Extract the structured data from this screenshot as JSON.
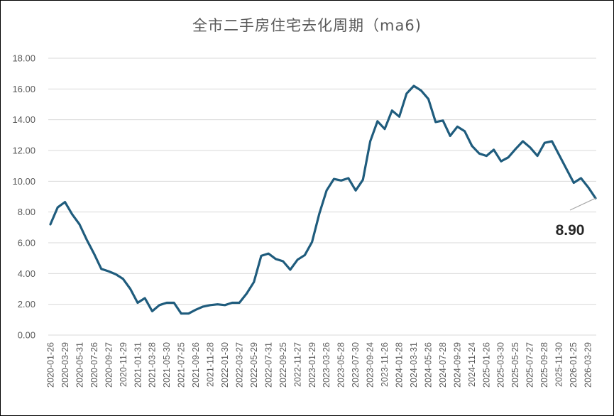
{
  "chart_data": {
    "type": "line",
    "title": "全市二手房住宅去化周期（ma6)",
    "xlabel": "",
    "ylabel": "",
    "ylim": [
      0,
      18
    ],
    "yticks": [
      "0.00",
      "2.00",
      "4.00",
      "6.00",
      "8.00",
      "10.00",
      "12.00",
      "14.00",
      "16.00",
      "18.00"
    ],
    "xtick_labels": [
      "2020-01-26",
      "2020-03-29",
      "2020-05-31",
      "2020-07-26",
      "2020-09-27",
      "2020-11-29",
      "2021-01-31",
      "2021-03-28",
      "2021-05-30",
      "2021-07-25",
      "2021-09-26",
      "2021-11-28",
      "2022-01-30",
      "2022-03-27",
      "2022-05-29",
      "2022-07-31",
      "2022-09-25",
      "2022-11-27",
      "2023-01-29",
      "2023-03-26",
      "2023-05-28",
      "2023-07-30",
      "2023-09-24",
      "2023-11-26",
      "2024-01-28",
      "2024-03-31",
      "2024-05-26",
      "2024-07-28",
      "2024-09-29",
      "2024-11-24",
      "2025-01-26",
      "2025-03-30",
      "2025-05-25",
      "2025-07-27",
      "2025-09-28",
      "2025-11-30",
      "2026-01-25",
      "2026-03-29"
    ],
    "grid": true,
    "line_color": "#1f5c7d",
    "series": [
      {
        "name": "",
        "values": [
          7.2,
          8.3,
          8.65,
          7.85,
          7.2,
          6.2,
          5.3,
          4.3,
          4.15,
          3.95,
          3.65,
          3.0,
          2.1,
          2.4,
          1.55,
          1.95,
          2.1,
          2.1,
          1.4,
          1.4,
          1.65,
          1.85,
          1.95,
          2.0,
          1.95,
          2.1,
          2.1,
          2.7,
          3.45,
          5.15,
          5.3,
          4.95,
          4.8,
          4.25,
          4.9,
          5.2,
          6.05,
          7.9,
          9.4,
          10.15,
          10.05,
          10.2,
          9.4,
          10.1,
          12.6,
          13.9,
          13.4,
          14.6,
          14.2,
          15.7,
          16.2,
          15.9,
          15.35,
          13.85,
          13.95,
          12.95,
          13.55,
          13.25,
          12.3,
          11.8,
          11.65,
          12.05,
          11.3,
          11.55,
          12.1,
          12.6,
          12.2,
          11.65,
          12.5,
          12.6,
          11.7,
          10.8,
          9.9,
          10.2,
          9.6,
          8.9
        ]
      }
    ],
    "annotation": {
      "text": "8.90",
      "value": 8.9
    }
  }
}
